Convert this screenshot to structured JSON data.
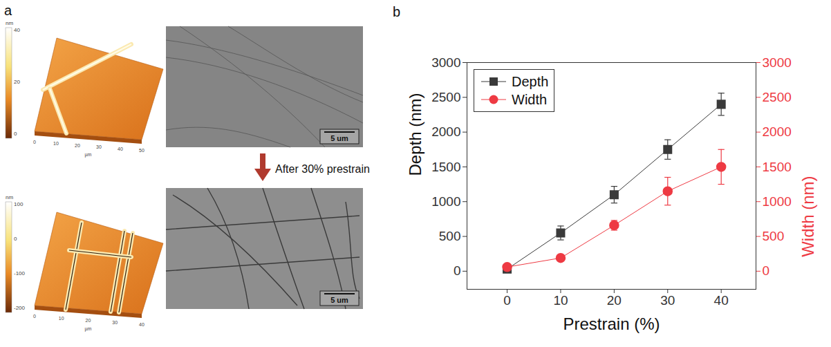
{
  "panel_letters": [
    "a",
    "b"
  ],
  "panel_a": {
    "arrow_label": "After 30% prestrain",
    "before": {
      "afm": {
        "axis_unit": "µm",
        "axis_ticks": [
          0,
          10,
          20,
          30,
          40,
          50
        ],
        "colorbar_unit": "nm",
        "colorbar_ticks": [
          0,
          20,
          40
        ]
      },
      "sem_scale_bar": "5 um"
    },
    "after": {
      "afm": {
        "axis_unit": "µm",
        "axis_ticks": [
          0,
          10,
          20,
          30,
          40
        ],
        "colorbar_unit": "nm",
        "colorbar_ticks": [
          -200,
          -100,
          0,
          100
        ]
      },
      "sem_scale_bar": "5 um"
    }
  },
  "chart_data": {
    "type": "line",
    "x_label": "Prestrain (%)",
    "y_label": "Depth (nm)",
    "y2_label": "Width (nm)",
    "x": [
      0,
      10,
      20,
      30,
      40
    ],
    "series": [
      {
        "name": "Depth",
        "color": "#3a3a3a",
        "marker": "square",
        "values": [
          30,
          550,
          1100,
          1750,
          2400
        ],
        "errors": [
          20,
          100,
          120,
          140,
          160
        ]
      },
      {
        "name": "Width",
        "color": "#ee3a43",
        "marker": "circle",
        "axis": "y2",
        "values": [
          60,
          190,
          660,
          1150,
          1500
        ],
        "errors": [
          20,
          20,
          70,
          200,
          250
        ]
      }
    ],
    "xlim": [
      -7.5,
      46.5
    ],
    "xticks": [
      0,
      10,
      20,
      30,
      40
    ],
    "ylim": [
      -260,
      3000
    ],
    "yticks": [
      0,
      500,
      1000,
      1500,
      2000,
      2500,
      3000
    ],
    "y2lim": [
      -260,
      3000
    ],
    "y2ticks": [
      0,
      500,
      1000,
      1500,
      2000,
      2500,
      3000
    ],
    "legend": "upper left",
    "grid": false
  }
}
